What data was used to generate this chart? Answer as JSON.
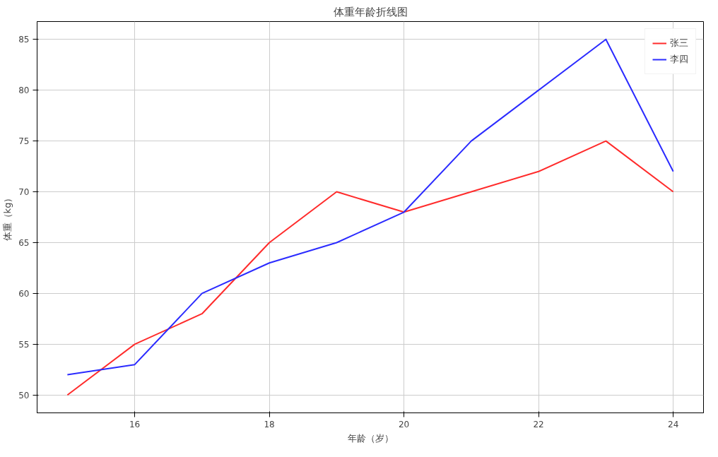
{
  "chart_data": {
    "type": "line",
    "title": "体重年龄折线图",
    "xlabel": "年龄（岁）",
    "ylabel": "体重（kg）",
    "x": [
      15,
      16,
      17,
      18,
      19,
      20,
      21,
      22,
      23,
      24
    ],
    "series": [
      {
        "name": "张三",
        "color": "#ff2b2b",
        "values": [
          50,
          55,
          58,
          65,
          70,
          68,
          70,
          72,
          75,
          70
        ]
      },
      {
        "name": "李四",
        "color": "#2b2bff",
        "values": [
          52,
          53,
          60,
          63,
          65,
          68,
          75,
          80,
          85,
          72
        ]
      }
    ],
    "xlim": [
      14.55,
      24.45
    ],
    "xticks": [
      16,
      18,
      20,
      22,
      24
    ],
    "ylim": [
      48.25,
      86.75
    ],
    "yticks": [
      50,
      55,
      60,
      65,
      70,
      75,
      80,
      85
    ],
    "grid": true,
    "legend": "top right",
    "marker": "none",
    "line_style": "solid"
  }
}
